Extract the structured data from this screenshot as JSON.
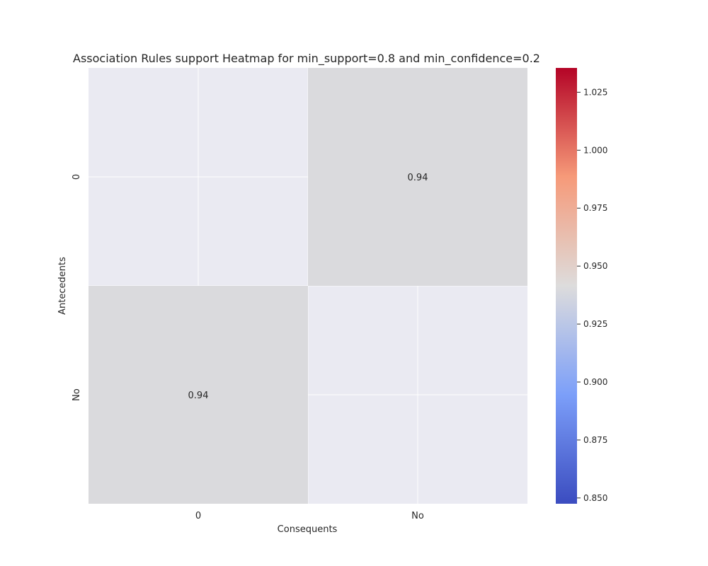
{
  "chart_data": {
    "type": "heatmap",
    "title": "Association Rules support Heatmap for min_support=0.8 and min_confidence=0.2",
    "xlabel": "Consequents",
    "ylabel": "Antecedents",
    "x_categories": [
      "0",
      "No"
    ],
    "y_categories": [
      "0",
      "No"
    ],
    "values": [
      [
        null,
        0.94
      ],
      [
        0.94,
        null
      ]
    ],
    "cell_labels": [
      [
        "",
        "0.94"
      ],
      [
        "0.94",
        ""
      ]
    ],
    "colormap": "coolwarm",
    "missing_color": "#eaeaf2",
    "grid": true,
    "grid_color": "#ffffff",
    "colorbar": {
      "range": [
        0.8475,
        1.0355
      ],
      "ticks": [
        0.85,
        0.875,
        0.9,
        0.925,
        0.95,
        0.975,
        1.0,
        1.025
      ],
      "tick_labels": [
        "0.850",
        "0.875",
        "0.900",
        "0.925",
        "0.950",
        "0.975",
        "1.000",
        "1.025"
      ],
      "placement": "right"
    }
  }
}
